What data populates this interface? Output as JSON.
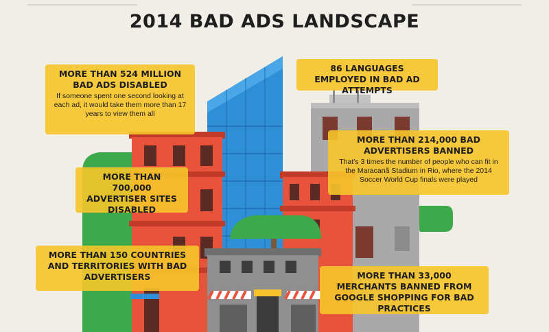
{
  "title": "2014 BAD ADS LANDSCAPE",
  "colors": {
    "background": "#f1eee7",
    "note_fill": "#f6c42a",
    "building_red": "#e8533c",
    "building_blue": "#2f8fd6",
    "building_gray": "#a7a7a7",
    "tree_green": "#3ea94b"
  },
  "stats": [
    {
      "id": "bad-ads-disabled",
      "headline": "MORE THAN 524 MILLION BAD ADS DISABLED",
      "detail": "If someone spent one second looking at each ad, it would take them more than 17 years to view them all"
    },
    {
      "id": "languages",
      "headline": "86 LANGUAGES EMPLOYED IN BAD AD ATTEMPTS",
      "detail": ""
    },
    {
      "id": "advertisers-banned",
      "headline": "MORE THAN 214,000 BAD ADVERTISERS BANNED",
      "detail": "That's 3 times the number of people who can fit in the Maracanã Stadium in Rio, where the 2014 Soccer World Cup finals were played"
    },
    {
      "id": "sites-disabled",
      "headline": "MORE THAN 700,000 ADVERTISER SITES DISABLED",
      "detail": ""
    },
    {
      "id": "countries",
      "headline": "MORE THAN 150 COUNTRIES AND TERRITORIES WITH BAD ADVERTISERS",
      "detail": ""
    },
    {
      "id": "merchants-banned",
      "headline": "MORE THAN 33,000 MERCHANTS BANNED FROM GOOGLE SHOPPING FOR BAD PRACTICES",
      "detail": ""
    }
  ]
}
